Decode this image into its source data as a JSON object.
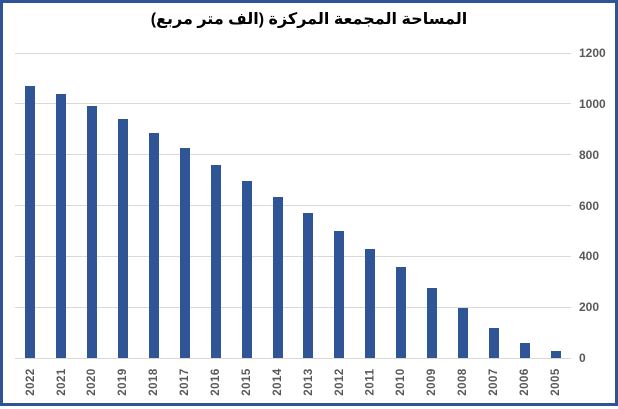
{
  "chart_data": {
    "type": "bar",
    "title": "المساحة المجمعة المركزة (الف متر مربع)",
    "categories": [
      "2022",
      "2021",
      "2020",
      "2019",
      "2018",
      "2017",
      "2016",
      "2015",
      "2014",
      "2013",
      "2012",
      "2011",
      "2010",
      "2009",
      "2008",
      "2007",
      "2006",
      "2005"
    ],
    "values": [
      1070,
      1038,
      990,
      940,
      886,
      826,
      760,
      696,
      632,
      570,
      500,
      430,
      357,
      277,
      195,
      120,
      60,
      28
    ],
    "xlabel": "",
    "ylabel": "",
    "ylim": [
      0,
      1200
    ],
    "y_ticks": [
      0,
      200,
      400,
      600,
      800,
      1000,
      1200
    ],
    "y_axis_side": "right",
    "x_label_rotation": -90,
    "legend": "none",
    "grid": "horizontal"
  },
  "colors": {
    "bar": "#2F5597",
    "frame_border": "#2F5496",
    "gridline": "#D9D9D9",
    "title_text": "#000000",
    "tick_label": "#595959",
    "background": "#FFFFFF"
  }
}
